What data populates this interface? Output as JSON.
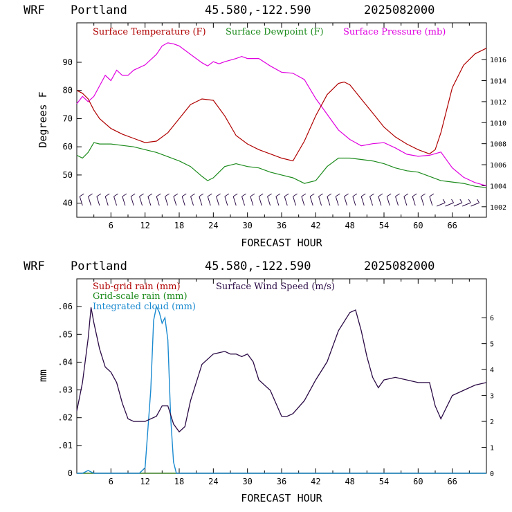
{
  "header": {
    "model": "WRF",
    "location": "Portland",
    "coords": "45.580,-122.590",
    "run": "2025082000"
  },
  "colors": {
    "temperature": "#b00000",
    "dewpoint": "#1a8a1a",
    "pressure": "#e000e0",
    "wind": "#2a0a45",
    "subgrid_rain": "#b00000",
    "gridscale_rain": "#1a8a1a",
    "cloud": "#1a8ad0"
  },
  "chart_data": [
    {
      "type": "line",
      "xlabel": "FORECAST HOUR",
      "ylabel": "Degrees F",
      "xlim": [
        0,
        72
      ],
      "ylim": [
        35,
        104
      ],
      "y2lim": [
        1001,
        1019.5
      ],
      "xticks": [
        "6",
        "12",
        "18",
        "24",
        "30",
        "36",
        "42",
        "48",
        "54",
        "60",
        "66"
      ],
      "yticks": [
        "40",
        "50",
        "60",
        "70",
        "80",
        "90"
      ],
      "y2ticks": [
        "1002",
        "1004",
        "1006",
        "1008",
        "1010",
        "1012",
        "1014",
        "1016"
      ],
      "legend": [
        "Surface Temperature (F)",
        "Surface Dewpoint (F)",
        "Surface Pressure (mb)"
      ],
      "series": [
        {
          "name": "Surface Temperature (F)",
          "axis": "left",
          "x": [
            0,
            1,
            2,
            3,
            4,
            6,
            8,
            10,
            12,
            14,
            16,
            18,
            20,
            22,
            24,
            26,
            28,
            30,
            32,
            34,
            36,
            38,
            40,
            42,
            44,
            46,
            47,
            48,
            50,
            52,
            54,
            56,
            58,
            60,
            62,
            63,
            64,
            66,
            68,
            70,
            72
          ],
          "y": [
            80,
            79,
            77,
            73,
            70,
            66.5,
            64.5,
            63,
            61.5,
            62,
            65,
            70,
            75,
            77,
            76.5,
            71,
            64,
            61,
            59,
            57.5,
            56,
            55,
            62,
            71,
            78.5,
            82.5,
            83,
            82,
            77,
            72,
            67,
            63.5,
            61,
            59,
            57.5,
            59,
            65,
            81,
            89,
            93,
            95
          ]
        },
        {
          "name": "Surface Dewpoint (F)",
          "axis": "left",
          "x": [
            0,
            1,
            2,
            3,
            4,
            6,
            8,
            10,
            12,
            14,
            16,
            18,
            20,
            22,
            23,
            24,
            26,
            28,
            30,
            32,
            34,
            36,
            38,
            40,
            42,
            44,
            46,
            48,
            50,
            52,
            54,
            56,
            58,
            60,
            62,
            64,
            66,
            68,
            70,
            72
          ],
          "y": [
            57,
            56,
            58,
            61.5,
            61,
            61,
            60.5,
            60,
            59,
            58,
            56.5,
            55,
            53,
            49.5,
            48,
            49,
            53,
            54,
            53,
            52.5,
            51,
            50,
            49,
            47,
            48,
            53,
            56,
            56,
            55.5,
            55,
            54,
            52.5,
            51.5,
            51,
            49.5,
            48,
            47.5,
            47,
            46,
            45.5
          ]
        },
        {
          "name": "Surface Pressure (mb)",
          "axis": "right",
          "x": [
            0,
            1,
            2,
            3,
            4,
            5,
            6,
            7,
            8,
            9,
            10,
            12,
            14,
            15,
            16,
            17,
            18,
            20,
            22,
            23,
            24,
            25,
            26,
            28,
            29,
            30,
            32,
            34,
            36,
            38,
            40,
            42,
            44,
            46,
            48,
            50,
            52,
            54,
            56,
            58,
            60,
            62,
            64,
            66,
            68,
            70,
            72
          ],
          "y": [
            1011.8,
            1012.5,
            1012,
            1012.5,
            1013.5,
            1014.5,
            1014,
            1015,
            1014.5,
            1014.5,
            1015,
            1015.5,
            1016.5,
            1017.3,
            1017.6,
            1017.5,
            1017.3,
            1016.5,
            1015.7,
            1015.4,
            1015.8,
            1015.6,
            1015.8,
            1016.1,
            1016.3,
            1016.1,
            1016.1,
            1015.4,
            1014.8,
            1014.7,
            1014.1,
            1012.3,
            1010.8,
            1009.3,
            1008.4,
            1007.8,
            1008,
            1008.1,
            1007.6,
            1007,
            1006.8,
            1006.9,
            1007.2,
            1005.7,
            1004.8,
            1004.3,
            1004
          ]
        }
      ]
    },
    {
      "type": "line",
      "xlabel": "FORECAST HOUR",
      "ylabel": "mm",
      "xlim": [
        0,
        72
      ],
      "ylim": [
        0,
        0.07
      ],
      "y2lim": [
        0,
        7.5
      ],
      "xticks": [
        "6",
        "12",
        "18",
        "24",
        "30",
        "36",
        "42",
        "48",
        "54",
        "60",
        "66"
      ],
      "yticks": [
        "0",
        ".01",
        ".02",
        ".03",
        ".04",
        ".05",
        ".06"
      ],
      "y2ticks": [
        "0",
        "1",
        "2",
        "3",
        "4",
        "5",
        "6"
      ],
      "legend": [
        "Sub-grid rain (mm)",
        "Grid-scale rain (mm)",
        "Integrated cloud (mm)",
        "Surface Wind Speed (m/s)"
      ],
      "series": [
        {
          "name": "Surface Wind Speed (m/s)",
          "axis": "right",
          "x": [
            0,
            1,
            2,
            2.5,
            3,
            4,
            5,
            6,
            7,
            8,
            9,
            10,
            12,
            14,
            15,
            16,
            17,
            18,
            19,
            20,
            22,
            24,
            26,
            27,
            28,
            29,
            30,
            31,
            32,
            34,
            36,
            37,
            38,
            40,
            42,
            44,
            46,
            48,
            49,
            50,
            51,
            52,
            53,
            54,
            56,
            58,
            60,
            62,
            63,
            64,
            66,
            68,
            70,
            72
          ],
          "y": [
            2.4,
            3.5,
            5.2,
            6.4,
            5.8,
            4.8,
            4.1,
            3.9,
            3.5,
            2.7,
            2.1,
            2.0,
            2.0,
            2.2,
            2.6,
            2.6,
            1.9,
            1.6,
            1.8,
            2.8,
            4.2,
            4.6,
            4.7,
            4.6,
            4.6,
            4.5,
            4.6,
            4.3,
            3.6,
            3.2,
            2.2,
            2.2,
            2.3,
            2.8,
            3.6,
            4.3,
            5.5,
            6.2,
            6.3,
            5.5,
            4.5,
            3.7,
            3.3,
            3.6,
            3.7,
            3.6,
            3.5,
            3.5,
            2.6,
            2.1,
            3.0,
            3.2,
            3.4,
            3.5
          ]
        },
        {
          "name": "Integrated cloud (mm)",
          "axis": "left",
          "x": [
            0,
            1,
            2,
            3,
            4,
            11,
            12,
            13,
            13.5,
            14,
            14.5,
            15,
            15.5,
            16,
            16.5,
            17,
            17.5,
            72
          ],
          "y": [
            0,
            0,
            0.001,
            0,
            0,
            0,
            0.002,
            0.03,
            0.055,
            0.06,
            0.058,
            0.054,
            0.056,
            0.048,
            0.02,
            0.004,
            0,
            0
          ]
        },
        {
          "name": "Sub-grid rain (mm)",
          "axis": "left",
          "x": [
            0,
            72
          ],
          "y": [
            0,
            0
          ]
        },
        {
          "name": "Grid-scale rain (mm)",
          "axis": "left",
          "x": [
            0,
            72
          ],
          "y": [
            0,
            0
          ]
        }
      ]
    }
  ]
}
